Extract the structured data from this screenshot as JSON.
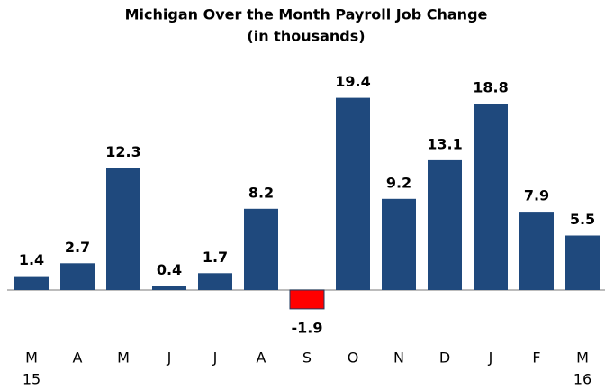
{
  "chart_data": {
    "type": "bar",
    "title": "Michigan Over the Month Payroll Job Change",
    "subtitle": "(in thousands)",
    "categories": [
      "M",
      "A",
      "M",
      "J",
      "J",
      "A",
      "S",
      "O",
      "N",
      "D",
      "J",
      "F",
      "M"
    ],
    "sublabels": [
      "15",
      null,
      null,
      null,
      null,
      null,
      null,
      null,
      null,
      null,
      null,
      null,
      "16"
    ],
    "values": [
      1.4,
      2.7,
      12.3,
      0.4,
      1.7,
      8.2,
      -1.9,
      19.4,
      9.2,
      13.1,
      18.8,
      7.9,
      5.5
    ],
    "color": "#1f497d",
    "negative_color": "#ff0000",
    "ylim": [
      -3,
      20
    ]
  }
}
